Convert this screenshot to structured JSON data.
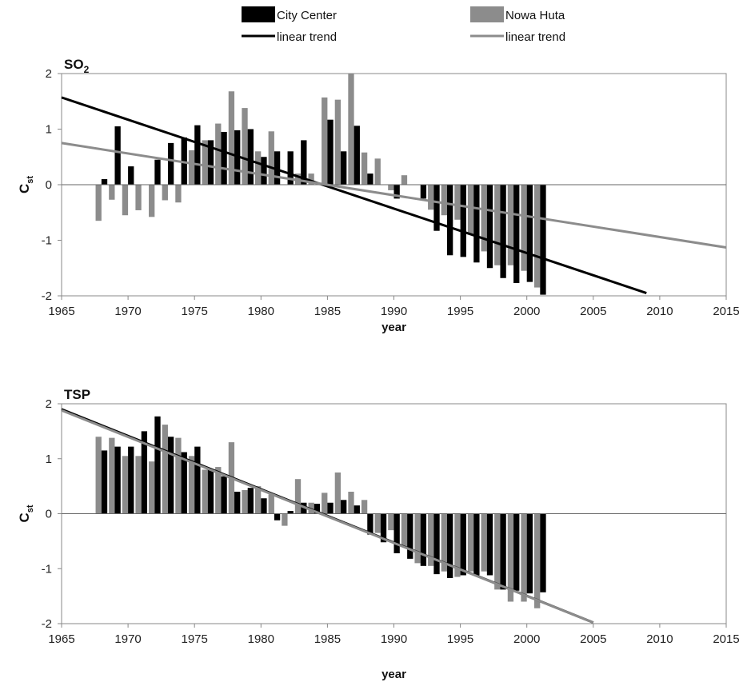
{
  "legend": {
    "position": "top",
    "entries": [
      {
        "label": "City Center",
        "kind": "bar",
        "color": "#000000"
      },
      {
        "label": "Nowa Huta",
        "kind": "bar",
        "color": "#8c8c8c"
      },
      {
        "label": "linear trend",
        "kind": "line",
        "color": "#000000"
      },
      {
        "label": "linear trend",
        "kind": "line",
        "color": "#8c8c8c"
      }
    ]
  },
  "colors": {
    "city_center": "#000000",
    "nowa_huta": "#8c8c8c",
    "trend_city": "#000000",
    "trend_nowa": "#8c8c8c"
  },
  "chart_data": [
    {
      "type": "bar",
      "title": "SO",
      "title_subscript": "2",
      "xlabel": "year",
      "ylabel": "C",
      "ylabel_subscript": "st",
      "xlim": [
        1965,
        2015
      ],
      "ylim": [
        -2,
        2
      ],
      "xticks": [
        1965,
        1970,
        1975,
        1980,
        1985,
        1990,
        1995,
        2000,
        2005,
        2010,
        2015
      ],
      "yticks": [
        -2,
        -1,
        0,
        1,
        2
      ],
      "grid": false,
      "x": [
        1968,
        1969,
        1970,
        1971,
        1972,
        1973,
        1974,
        1975,
        1976,
        1977,
        1978,
        1979,
        1980,
        1981,
        1982,
        1983,
        1984,
        1985,
        1986,
        1987,
        1988,
        1989,
        1990,
        1991,
        1992,
        1993,
        1994,
        1995,
        1996,
        1997,
        1998,
        1999,
        2000,
        2001
      ],
      "series": [
        {
          "name": "City Center",
          "values": [
            0.1,
            1.05,
            0.33,
            0.0,
            0.45,
            0.75,
            0.85,
            1.07,
            0.8,
            0.95,
            0.98,
            1.0,
            0.5,
            0.6,
            0.6,
            0.8,
            0.0,
            1.17,
            0.6,
            1.06,
            0.2,
            0.0,
            -0.25,
            0.0,
            -0.25,
            -0.83,
            -1.27,
            -1.3,
            -1.4,
            -1.5,
            -1.68,
            -1.77,
            -1.75,
            -1.98
          ]
        },
        {
          "name": "Nowa Huta",
          "values": [
            -0.65,
            -0.27,
            -0.55,
            -0.46,
            -0.58,
            -0.28,
            -0.32,
            0.62,
            0.8,
            1.1,
            1.68,
            1.38,
            0.6,
            0.96,
            0.0,
            0.2,
            0.2,
            1.57,
            1.53,
            2.0,
            0.58,
            0.47,
            -0.1,
            0.17,
            0.0,
            -0.45,
            -0.55,
            -0.63,
            -0.9,
            -1.2,
            -1.45,
            -1.45,
            -1.55,
            -1.85
          ]
        },
        {
          "name": "linear trend",
          "kind": "trend",
          "x": [
            1965,
            2009
          ],
          "values": [
            1.57,
            -1.95
          ]
        },
        {
          "name": "linear trend",
          "kind": "trend",
          "x": [
            1965,
            2015
          ],
          "values": [
            0.75,
            -1.13
          ]
        }
      ]
    },
    {
      "type": "bar",
      "title": "TSP",
      "xlabel": "year",
      "ylabel": "C",
      "ylabel_subscript": "st",
      "xlim": [
        1965,
        2015
      ],
      "ylim": [
        -2,
        2
      ],
      "xticks": [
        1965,
        1970,
        1975,
        1980,
        1985,
        1990,
        1995,
        2000,
        2005,
        2010,
        2015
      ],
      "yticks": [
        -2,
        -1,
        0,
        1,
        2
      ],
      "grid": false,
      "x": [
        1968,
        1969,
        1970,
        1971,
        1972,
        1973,
        1974,
        1975,
        1976,
        1977,
        1978,
        1979,
        1980,
        1981,
        1982,
        1983,
        1984,
        1985,
        1986,
        1987,
        1988,
        1989,
        1990,
        1991,
        1992,
        1993,
        1994,
        1995,
        1996,
        1997,
        1998,
        1999,
        2000,
        2001
      ],
      "series": [
        {
          "name": "City Center",
          "values": [
            1.15,
            1.22,
            1.22,
            1.5,
            1.77,
            1.4,
            1.12,
            1.22,
            0.8,
            0.68,
            0.4,
            0.47,
            0.28,
            -0.12,
            0.05,
            0.2,
            0.18,
            0.2,
            0.25,
            0.15,
            -0.38,
            -0.52,
            -0.72,
            -0.82,
            -0.95,
            -1.1,
            -1.17,
            -1.12,
            -1.12,
            -1.12,
            -1.38,
            -1.4,
            -1.45,
            -1.43
          ]
        },
        {
          "name": "Nowa Huta",
          "values": [
            1.4,
            1.38,
            1.05,
            1.05,
            0.95,
            1.62,
            1.38,
            1.05,
            0.8,
            0.85,
            1.3,
            0.43,
            0.5,
            0.35,
            -0.22,
            0.63,
            0.2,
            0.38,
            0.75,
            0.4,
            0.25,
            -0.35,
            -0.3,
            -0.6,
            -0.9,
            -0.95,
            -1.05,
            -1.15,
            -1.05,
            -1.05,
            -1.38,
            -1.6,
            -1.6,
            -1.72
          ]
        },
        {
          "name": "linear trend",
          "kind": "trend",
          "x": [
            1965,
            2005
          ],
          "values": [
            1.9,
            -1.98
          ]
        },
        {
          "name": "linear trend",
          "kind": "trend",
          "x": [
            1965,
            2005
          ],
          "values": [
            1.88,
            -1.98
          ]
        }
      ]
    }
  ]
}
